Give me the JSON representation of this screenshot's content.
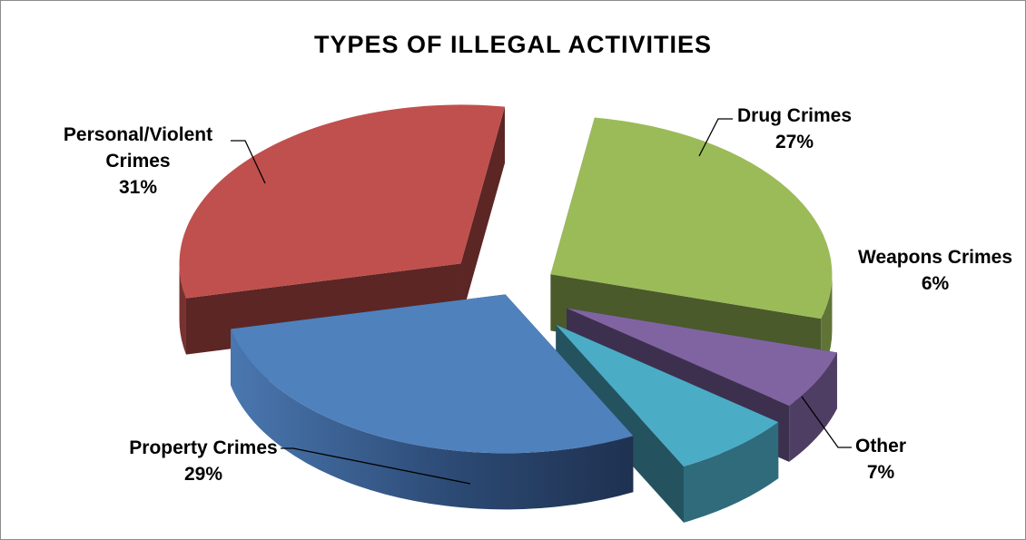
{
  "chart_data": {
    "type": "pie",
    "title": "TYPES OF ILLEGAL ACTIVITIES",
    "slices": [
      {
        "label": "Drug Crimes",
        "value": 27,
        "display": "27%",
        "color": "#9bbb59"
      },
      {
        "label": "Weapons Crimes",
        "value": 6,
        "display": "6%",
        "color": "#8064a2"
      },
      {
        "label": "Other",
        "value": 7,
        "display": "7%",
        "color": "#4bacc6"
      },
      {
        "label": "Property Crimes",
        "value": 29,
        "display": "29%",
        "color": "#4f81bd"
      },
      {
        "label": "Personal/Violent Crimes",
        "label_lines": [
          "Personal/Violent",
          "Crimes"
        ],
        "value": 31,
        "display": "31%",
        "color": "#c0504d"
      }
    ],
    "exploded": true,
    "three_d": true,
    "legend": "none"
  }
}
